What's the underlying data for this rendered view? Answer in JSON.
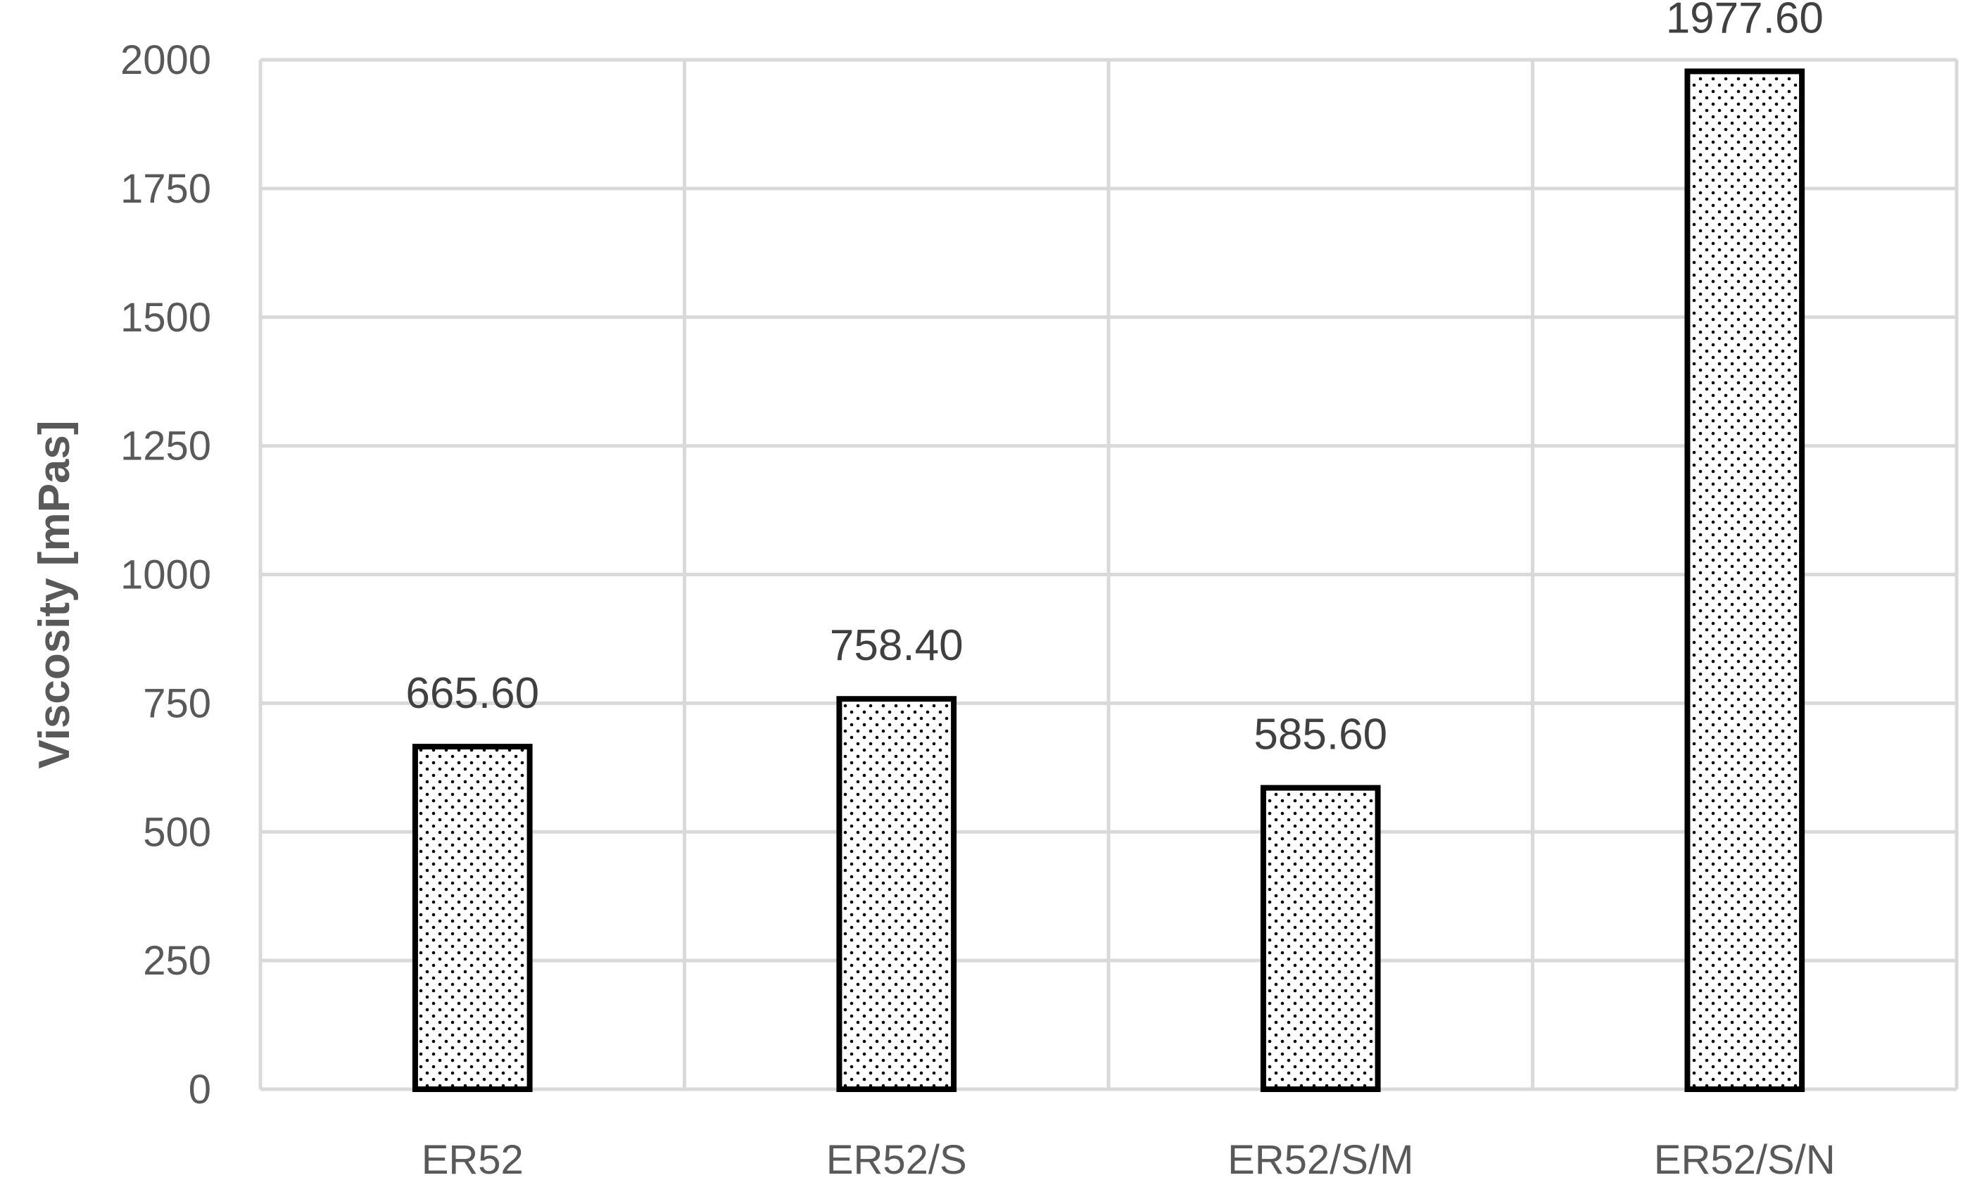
{
  "chart_data": {
    "type": "bar",
    "title": "",
    "xlabel": "",
    "ylabel": "Viscosity [mPas]",
    "categories": [
      "ER52",
      "ER52/S",
      "ER52/S/M",
      "ER52/S/N"
    ],
    "values": [
      665.6,
      758.4,
      585.6,
      1977.6
    ],
    "data_labels": [
      "665.60",
      "758.40",
      "585.60",
      "1977.60"
    ],
    "ylim": [
      0,
      2000
    ],
    "yticks": [
      0,
      250,
      500,
      750,
      1000,
      1250,
      1500,
      1750,
      2000
    ],
    "grid": true,
    "legend": "none",
    "bar_fill": "dotted pattern",
    "colors": {
      "bar_outline": "#000000",
      "bar_dots": "#000000",
      "grid": "#d9d9d9",
      "tick_text": "#595959",
      "axis_title": "#595959",
      "data_label": "#404040"
    }
  }
}
